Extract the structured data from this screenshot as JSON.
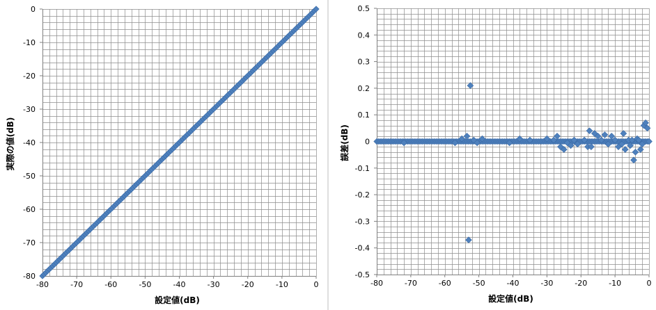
{
  "colors": {
    "marker": "#4F81BD",
    "marker_edge": "#3A6AA6",
    "grid": "#8c8c8c",
    "axis": "#7f7f7f",
    "divider": "#bfbfbf"
  },
  "chart_data": [
    {
      "type": "scatter",
      "title": "",
      "xlabel": "設定値(dB)",
      "ylabel": "実際の値(dB)",
      "xlim": [
        -80,
        0
      ],
      "ylim": [
        -80,
        0
      ],
      "xticks": [
        -80,
        -70,
        -60,
        -50,
        -40,
        -30,
        -20,
        -10,
        0
      ],
      "yticks": [
        0,
        -10,
        -20,
        -30,
        -40,
        -50,
        -60,
        -70,
        -80
      ],
      "minor_grid_step": 2,
      "grid": true,
      "legend": "none",
      "series": [
        {
          "x_range": [
            -80,
            0
          ],
          "x_step": 0.5,
          "y_equals_x": true
        }
      ]
    },
    {
      "type": "scatter",
      "title": "",
      "xlabel": "設定値(dB)",
      "ylabel": "誤差(dB)",
      "xlim": [
        -80,
        0
      ],
      "ylim": [
        -0.5,
        0.5
      ],
      "xticks": [
        -80,
        -70,
        -60,
        -50,
        -40,
        -30,
        -20,
        -10,
        0
      ],
      "yticks": [
        0.5,
        0.4,
        0.3,
        0.2,
        0.1,
        0,
        -0.1,
        -0.2,
        -0.3,
        -0.4,
        -0.5
      ],
      "minor_grid_step_x": 2,
      "minor_grid_step_y": 0.02,
      "grid": true,
      "legend": "none",
      "series": [
        {
          "baseline_x_range": [
            -80,
            0
          ],
          "baseline_x_step": 0.5,
          "baseline_y": 0,
          "points": [
            [
              -72,
              -0.005
            ],
            [
              -57,
              -0.005
            ],
            [
              -55,
              0.01
            ],
            [
              -53.5,
              0.02
            ],
            [
              -53,
              -0.37
            ],
            [
              -52.5,
              0.21
            ],
            [
              -51.5,
              0.005
            ],
            [
              -50.5,
              -0.005
            ],
            [
              -49,
              0.01
            ],
            [
              -41,
              -0.005
            ],
            [
              -38,
              0.01
            ],
            [
              -35,
              0.005
            ],
            [
              -30,
              0.01
            ],
            [
              -28,
              0.005
            ],
            [
              -27,
              0.02
            ],
            [
              -26,
              -0.02
            ],
            [
              -25,
              -0.03
            ],
            [
              -24,
              -0.005
            ],
            [
              -23,
              -0.015
            ],
            [
              -22,
              0.005
            ],
            [
              -21,
              -0.01
            ],
            [
              -19,
              0.005
            ],
            [
              -18,
              -0.02
            ],
            [
              -17.5,
              0.04
            ],
            [
              -17,
              -0.02
            ],
            [
              -16,
              0.03
            ],
            [
              -15,
              0.02
            ],
            [
              -14,
              0.005
            ],
            [
              -13,
              0.025
            ],
            [
              -12,
              -0.01
            ],
            [
              -11,
              0.02
            ],
            [
              -10,
              0.005
            ],
            [
              -9,
              -0.02
            ],
            [
              -8,
              -0.01
            ],
            [
              -7.5,
              0.03
            ],
            [
              -7,
              -0.03
            ],
            [
              -6,
              0.005
            ],
            [
              -5.5,
              -0.015
            ],
            [
              -5,
              0.005
            ],
            [
              -4.5,
              -0.07
            ],
            [
              -4,
              -0.04
            ],
            [
              -3.5,
              0.01
            ],
            [
              -3,
              0.005
            ],
            [
              -2.5,
              -0.03
            ],
            [
              -2,
              -0.01
            ],
            [
              -1.5,
              0.06
            ],
            [
              -1,
              0.07
            ],
            [
              -0.5,
              0.05
            ],
            [
              0,
              0.0
            ]
          ]
        }
      ]
    }
  ]
}
